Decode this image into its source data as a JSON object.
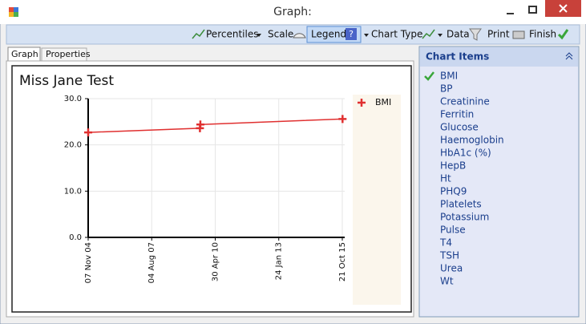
{
  "window": {
    "title": "Graph:"
  },
  "toolbar": {
    "items": [
      "Percentiles",
      "Scale",
      "Legend",
      "Chart Type",
      "Data",
      "Print",
      "Finish"
    ]
  },
  "tabs": [
    "Graph",
    "Properties"
  ],
  "side_panel": {
    "title": "Chart Items",
    "items": [
      {
        "label": "BMI",
        "checked": true
      },
      {
        "label": "BP",
        "checked": false
      },
      {
        "label": "Creatinine",
        "checked": false
      },
      {
        "label": "Ferritin",
        "checked": false
      },
      {
        "label": "Glucose",
        "checked": false
      },
      {
        "label": "Haemoglobin",
        "checked": false
      },
      {
        "label": "HbA1c (%)",
        "checked": false
      },
      {
        "label": "HepB",
        "checked": false
      },
      {
        "label": "Ht",
        "checked": false
      },
      {
        "label": "PHQ9",
        "checked": false
      },
      {
        "label": "Platelets",
        "checked": false
      },
      {
        "label": "Potassium",
        "checked": false
      },
      {
        "label": "Pulse",
        "checked": false
      },
      {
        "label": "T4",
        "checked": false
      },
      {
        "label": "TSH",
        "checked": false
      },
      {
        "label": "Urea",
        "checked": false
      },
      {
        "label": "Wt",
        "checked": false
      }
    ]
  },
  "chart_data": {
    "type": "line",
    "title": "Miss Jane Test",
    "x": [
      "2004-11-07",
      "2009-09-01",
      "2009-09-08",
      "2015-10-25"
    ],
    "series": [
      {
        "name": "BMI",
        "color": "#e03030",
        "values": [
          22.7,
          23.6,
          24.4,
          25.6
        ]
      }
    ],
    "xlim": [
      "2004-11-07",
      "2015-11-28"
    ],
    "xticks": [
      {
        "value": "2004-11-07",
        "label": "07 Nov 04"
      },
      {
        "value": "2007-08-04",
        "label": "04 Aug 07"
      },
      {
        "value": "2010-04-30",
        "label": "30 Apr 10"
      },
      {
        "value": "2013-01-24",
        "label": "24 Jan 13"
      },
      {
        "value": "2015-10-21",
        "label": "21 Oct 15"
      }
    ],
    "ylim": [
      0,
      30
    ],
    "yticks": [
      {
        "value": 0,
        "label": "0.0"
      },
      {
        "value": 10,
        "label": "10.0"
      },
      {
        "value": 20,
        "label": "20.0"
      },
      {
        "value": 30,
        "label": "30.0"
      }
    ],
    "grid": true,
    "legend": "right"
  }
}
